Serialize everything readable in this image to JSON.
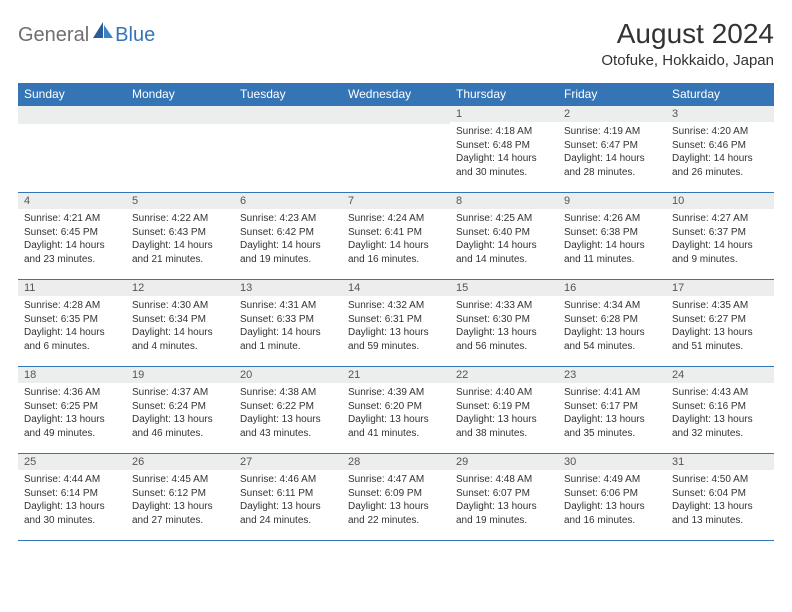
{
  "logo": {
    "text1": "General",
    "text2": "Blue"
  },
  "title": "August 2024",
  "location": "Otofuke, Hokkaido, Japan",
  "colors": {
    "accent": "#3575b6",
    "header_bg": "#3575b6",
    "header_text": "#ffffff",
    "daynum_bg": "#eceded",
    "body_text": "#333333",
    "logo_gray": "#6f6f6f"
  },
  "day_names": [
    "Sunday",
    "Monday",
    "Tuesday",
    "Wednesday",
    "Thursday",
    "Friday",
    "Saturday"
  ],
  "weeks": [
    [
      {
        "day": null
      },
      {
        "day": null
      },
      {
        "day": null
      },
      {
        "day": null
      },
      {
        "day": "1",
        "sunrise": "Sunrise: 4:18 AM",
        "sunset": "Sunset: 6:48 PM",
        "daylight": "Daylight: 14 hours and 30 minutes."
      },
      {
        "day": "2",
        "sunrise": "Sunrise: 4:19 AM",
        "sunset": "Sunset: 6:47 PM",
        "daylight": "Daylight: 14 hours and 28 minutes."
      },
      {
        "day": "3",
        "sunrise": "Sunrise: 4:20 AM",
        "sunset": "Sunset: 6:46 PM",
        "daylight": "Daylight: 14 hours and 26 minutes."
      }
    ],
    [
      {
        "day": "4",
        "sunrise": "Sunrise: 4:21 AM",
        "sunset": "Sunset: 6:45 PM",
        "daylight": "Daylight: 14 hours and 23 minutes."
      },
      {
        "day": "5",
        "sunrise": "Sunrise: 4:22 AM",
        "sunset": "Sunset: 6:43 PM",
        "daylight": "Daylight: 14 hours and 21 minutes."
      },
      {
        "day": "6",
        "sunrise": "Sunrise: 4:23 AM",
        "sunset": "Sunset: 6:42 PM",
        "daylight": "Daylight: 14 hours and 19 minutes."
      },
      {
        "day": "7",
        "sunrise": "Sunrise: 4:24 AM",
        "sunset": "Sunset: 6:41 PM",
        "daylight": "Daylight: 14 hours and 16 minutes."
      },
      {
        "day": "8",
        "sunrise": "Sunrise: 4:25 AM",
        "sunset": "Sunset: 6:40 PM",
        "daylight": "Daylight: 14 hours and 14 minutes."
      },
      {
        "day": "9",
        "sunrise": "Sunrise: 4:26 AM",
        "sunset": "Sunset: 6:38 PM",
        "daylight": "Daylight: 14 hours and 11 minutes."
      },
      {
        "day": "10",
        "sunrise": "Sunrise: 4:27 AM",
        "sunset": "Sunset: 6:37 PM",
        "daylight": "Daylight: 14 hours and 9 minutes."
      }
    ],
    [
      {
        "day": "11",
        "sunrise": "Sunrise: 4:28 AM",
        "sunset": "Sunset: 6:35 PM",
        "daylight": "Daylight: 14 hours and 6 minutes."
      },
      {
        "day": "12",
        "sunrise": "Sunrise: 4:30 AM",
        "sunset": "Sunset: 6:34 PM",
        "daylight": "Daylight: 14 hours and 4 minutes."
      },
      {
        "day": "13",
        "sunrise": "Sunrise: 4:31 AM",
        "sunset": "Sunset: 6:33 PM",
        "daylight": "Daylight: 14 hours and 1 minute."
      },
      {
        "day": "14",
        "sunrise": "Sunrise: 4:32 AM",
        "sunset": "Sunset: 6:31 PM",
        "daylight": "Daylight: 13 hours and 59 minutes."
      },
      {
        "day": "15",
        "sunrise": "Sunrise: 4:33 AM",
        "sunset": "Sunset: 6:30 PM",
        "daylight": "Daylight: 13 hours and 56 minutes."
      },
      {
        "day": "16",
        "sunrise": "Sunrise: 4:34 AM",
        "sunset": "Sunset: 6:28 PM",
        "daylight": "Daylight: 13 hours and 54 minutes."
      },
      {
        "day": "17",
        "sunrise": "Sunrise: 4:35 AM",
        "sunset": "Sunset: 6:27 PM",
        "daylight": "Daylight: 13 hours and 51 minutes."
      }
    ],
    [
      {
        "day": "18",
        "sunrise": "Sunrise: 4:36 AM",
        "sunset": "Sunset: 6:25 PM",
        "daylight": "Daylight: 13 hours and 49 minutes."
      },
      {
        "day": "19",
        "sunrise": "Sunrise: 4:37 AM",
        "sunset": "Sunset: 6:24 PM",
        "daylight": "Daylight: 13 hours and 46 minutes."
      },
      {
        "day": "20",
        "sunrise": "Sunrise: 4:38 AM",
        "sunset": "Sunset: 6:22 PM",
        "daylight": "Daylight: 13 hours and 43 minutes."
      },
      {
        "day": "21",
        "sunrise": "Sunrise: 4:39 AM",
        "sunset": "Sunset: 6:20 PM",
        "daylight": "Daylight: 13 hours and 41 minutes."
      },
      {
        "day": "22",
        "sunrise": "Sunrise: 4:40 AM",
        "sunset": "Sunset: 6:19 PM",
        "daylight": "Daylight: 13 hours and 38 minutes."
      },
      {
        "day": "23",
        "sunrise": "Sunrise: 4:41 AM",
        "sunset": "Sunset: 6:17 PM",
        "daylight": "Daylight: 13 hours and 35 minutes."
      },
      {
        "day": "24",
        "sunrise": "Sunrise: 4:43 AM",
        "sunset": "Sunset: 6:16 PM",
        "daylight": "Daylight: 13 hours and 32 minutes."
      }
    ],
    [
      {
        "day": "25",
        "sunrise": "Sunrise: 4:44 AM",
        "sunset": "Sunset: 6:14 PM",
        "daylight": "Daylight: 13 hours and 30 minutes."
      },
      {
        "day": "26",
        "sunrise": "Sunrise: 4:45 AM",
        "sunset": "Sunset: 6:12 PM",
        "daylight": "Daylight: 13 hours and 27 minutes."
      },
      {
        "day": "27",
        "sunrise": "Sunrise: 4:46 AM",
        "sunset": "Sunset: 6:11 PM",
        "daylight": "Daylight: 13 hours and 24 minutes."
      },
      {
        "day": "28",
        "sunrise": "Sunrise: 4:47 AM",
        "sunset": "Sunset: 6:09 PM",
        "daylight": "Daylight: 13 hours and 22 minutes."
      },
      {
        "day": "29",
        "sunrise": "Sunrise: 4:48 AM",
        "sunset": "Sunset: 6:07 PM",
        "daylight": "Daylight: 13 hours and 19 minutes."
      },
      {
        "day": "30",
        "sunrise": "Sunrise: 4:49 AM",
        "sunset": "Sunset: 6:06 PM",
        "daylight": "Daylight: 13 hours and 16 minutes."
      },
      {
        "day": "31",
        "sunrise": "Sunrise: 4:50 AM",
        "sunset": "Sunset: 6:04 PM",
        "daylight": "Daylight: 13 hours and 13 minutes."
      }
    ]
  ]
}
